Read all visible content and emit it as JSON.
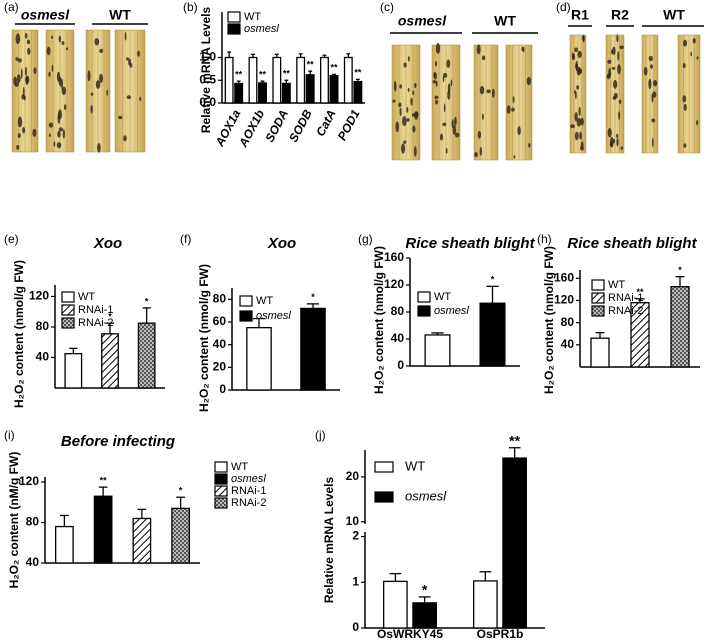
{
  "photos": [
    {
      "label": "(a)",
      "captions": [
        "osmesl",
        "WT"
      ]
    },
    {
      "label": "(c)",
      "captions": [
        "osmesl",
        "WT"
      ]
    },
    {
      "label": "(d)",
      "captions": [
        "R1",
        "R2",
        "WT"
      ]
    }
  ],
  "chart_data": [
    {
      "type": "bar",
      "label": "(b)",
      "y_label": "Relative mRNA  Levels",
      "categories": [
        "AOX1a",
        "AOX1b",
        "SODA",
        "SODB",
        "CatA",
        "POD1"
      ],
      "series": [
        {
          "name": "WT",
          "color": "#ffffff",
          "pattern": "solid",
          "values": [
            1,
            1,
            1,
            1,
            1,
            1
          ],
          "errors": [
            0.12,
            0.07,
            0.07,
            0.08,
            0.05,
            0.08
          ]
        },
        {
          "name": "osmesl",
          "color": "#000000",
          "pattern": "solid",
          "italic": true,
          "values": [
            0.43,
            0.44,
            0.43,
            0.62,
            0.6,
            0.47
          ],
          "errors": [
            0.05,
            0.04,
            0.07,
            0.08,
            0.03,
            0.05
          ],
          "annotations": [
            "**",
            "**",
            "**",
            "**",
            "**",
            "**"
          ]
        }
      ],
      "ylim": [
        0,
        2
      ],
      "yticks": [
        {
          "value": 0,
          "label": "0.0"
        },
        0.5,
        {
          "value": 1,
          "label": "1.0"
        }
      ]
    },
    {
      "type": "bar",
      "label": "(e)",
      "title": "Xoo",
      "y_label": "H₂O₂ content (nmol/g FW)",
      "series": [
        {
          "name": "WT",
          "color": "#ffffff",
          "pattern": "solid",
          "values": [
            45
          ],
          "errors": [
            7
          ]
        },
        {
          "name": "RNAi-1",
          "color": "#ffffff",
          "pattern": "hatch",
          "values": [
            71
          ],
          "errors": [
            14
          ],
          "annotations": [
            "*"
          ]
        },
        {
          "name": "RNAi-2",
          "color": "#ffffff",
          "pattern": "cross",
          "values": [
            85
          ],
          "errors": [
            20
          ],
          "annotations": [
            "*"
          ]
        }
      ],
      "ylim": [
        0,
        135
      ],
      "yticks": [
        40,
        80,
        120
      ]
    },
    {
      "type": "bar",
      "label": "(f)",
      "title": "Xoo",
      "y_label": "H₂O₂ content (nmol/g FW)",
      "series": [
        {
          "name": "WT",
          "color": "#ffffff",
          "pattern": "solid",
          "values": [
            55
          ],
          "errors": [
            8
          ]
        },
        {
          "name": "osmesl",
          "color": "#000000",
          "pattern": "solid",
          "italic": true,
          "values": [
            72
          ],
          "errors": [
            4
          ],
          "annotations": [
            "*"
          ]
        }
      ],
      "ylim": [
        0,
        90
      ],
      "yticks": [
        0,
        20,
        40,
        60,
        80
      ]
    },
    {
      "type": "bar",
      "label": "(g)",
      "title": "Rice sheath blight",
      "y_label": "H₂O₂ content (nmol/g FW)",
      "series": [
        {
          "name": "WT",
          "color": "#ffffff",
          "pattern": "solid",
          "values": [
            46
          ],
          "errors": [
            3
          ]
        },
        {
          "name": "osmesl",
          "color": "#000000",
          "pattern": "solid",
          "italic": true,
          "values": [
            93
          ],
          "errors": [
            25
          ],
          "annotations": [
            "*"
          ]
        }
      ],
      "ylim": [
        0,
        160
      ],
      "yticks": [
        0,
        40,
        80,
        120,
        160
      ]
    },
    {
      "type": "bar",
      "label": "(h)",
      "title": "Rice sheath blight",
      "y_label": "H₂O₂ content (nmol/g FW)",
      "series": [
        {
          "name": "WT",
          "color": "#ffffff",
          "pattern": "solid",
          "values": [
            52
          ],
          "errors": [
            10
          ]
        },
        {
          "name": "RNAi-1",
          "color": "#ffffff",
          "pattern": "hatch",
          "values": [
            116
          ],
          "errors": [
            7
          ],
          "annotations": [
            "**"
          ]
        },
        {
          "name": "RNAi-2",
          "color": "#ffffff",
          "pattern": "cross",
          "values": [
            145
          ],
          "errors": [
            18
          ],
          "annotations": [
            "*"
          ]
        }
      ],
      "ylim": [
        0,
        175
      ],
      "yticks": [
        40,
        80,
        120,
        160
      ]
    },
    {
      "type": "bar",
      "label": "(i)",
      "title": "Before infecting",
      "y_label": "H₂O₂ content (nM/g FW)",
      "series": [
        {
          "name": "WT",
          "color": "#ffffff",
          "pattern": "solid",
          "values": [
            76
          ],
          "errors": [
            11
          ]
        },
        {
          "name": "osmesl",
          "color": "#000000",
          "pattern": "solid",
          "italic": true,
          "values": [
            106
          ],
          "errors": [
            9
          ],
          "annotations": [
            "**"
          ]
        },
        {
          "name": "RNAi-1",
          "color": "#ffffff",
          "pattern": "hatch",
          "values": [
            84
          ],
          "errors": [
            9
          ]
        },
        {
          "name": "RNAi-2",
          "color": "#ffffff",
          "pattern": "cross",
          "values": [
            94
          ],
          "errors": [
            11
          ],
          "annotations": [
            "*"
          ]
        }
      ],
      "ylim": [
        40,
        125
      ],
      "yticks": [
        40,
        80,
        120
      ]
    },
    {
      "type": "bar",
      "label": "(j)",
      "y_label": "Relative mRNA  Levels",
      "categories": [
        "OsWRKY45",
        "OsPR1b"
      ],
      "series": [
        {
          "name": "WT",
          "color": "#ffffff",
          "pattern": "solid",
          "values": [
            1.02,
            1.03
          ],
          "errors": [
            0.17,
            0.2
          ]
        },
        {
          "name": "osmesl",
          "color": "#000000",
          "pattern": "solid",
          "italic": true,
          "values": [
            0.55,
            24.2
          ],
          "errors": [
            0.13,
            2.3
          ],
          "annotations": [
            "*",
            "**"
          ]
        }
      ],
      "ylim": [
        0,
        26
      ],
      "axis_break": [
        2.1,
        9.5
      ],
      "yticks": [
        0,
        1,
        2,
        10,
        20
      ]
    }
  ]
}
